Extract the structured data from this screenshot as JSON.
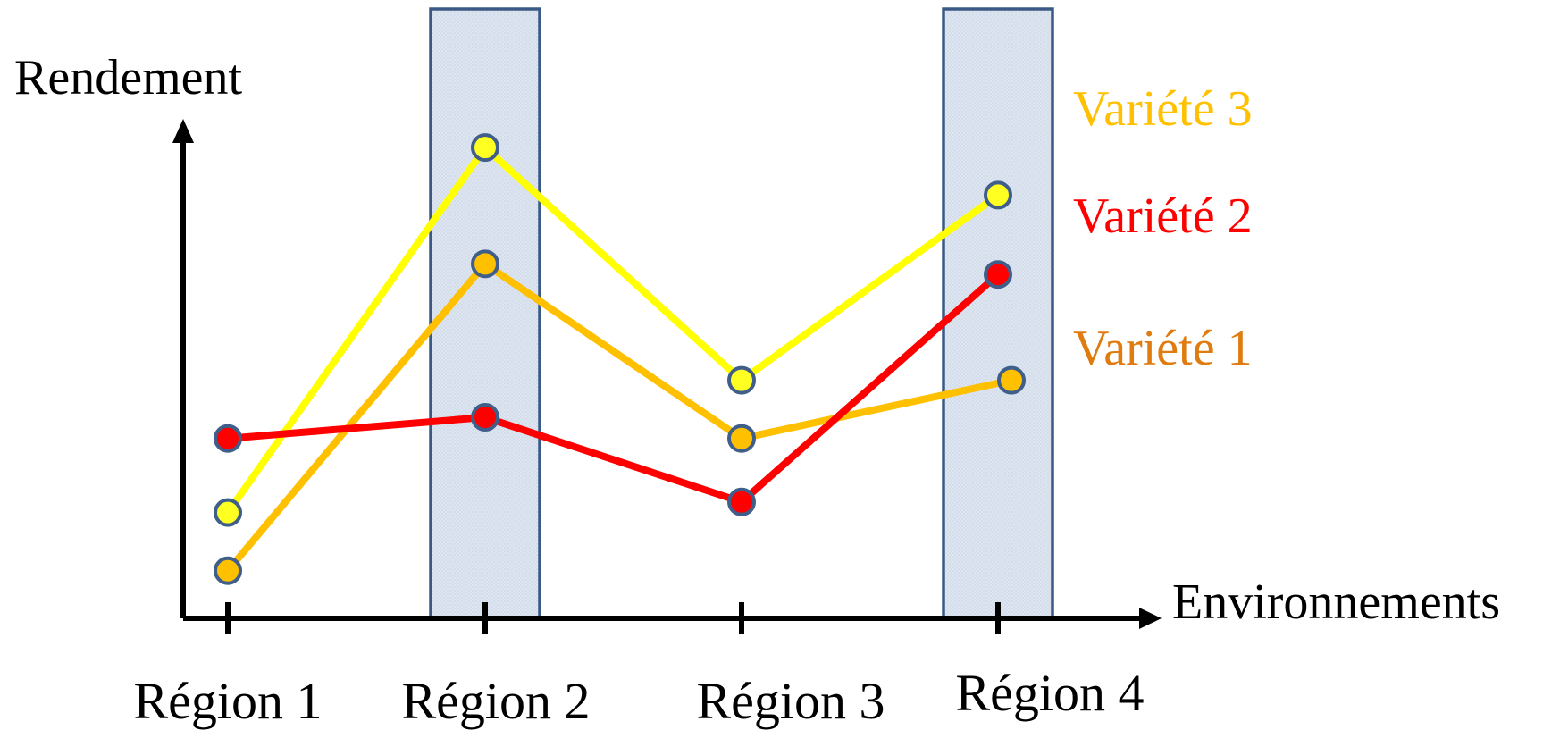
{
  "chart_data": {
    "type": "line",
    "xlabel": "Environnements",
    "ylabel": "Rendement",
    "categories": [
      "Région 1",
      "Région 2",
      "Région 3",
      "Région 4"
    ],
    "highlighted_categories": [
      "Région 2",
      "Région 4"
    ],
    "y_ticks_shown": false,
    "ylim": [
      0,
      10
    ],
    "grid": false,
    "legend_placement": "right",
    "series": [
      {
        "name": "Variété 3",
        "line_color": "#ffff00",
        "marker_color": "#ffff22",
        "label_color": "#ffc000",
        "values": [
          2.0,
          8.9,
          4.5,
          8.0
        ]
      },
      {
        "name": "Variété 2",
        "line_color": "#ff0000",
        "marker_color": "#ff0000",
        "label_color": "#ff0000",
        "values": [
          3.4,
          3.8,
          2.2,
          6.5
        ]
      },
      {
        "name": "Variété 1",
        "line_color": "#ffc000",
        "marker_color": "#ffc000",
        "label_color": "#e07b10",
        "values": [
          0.9,
          6.7,
          3.4,
          4.5
        ]
      }
    ],
    "colors": {
      "axis": "#000000",
      "marker_stroke": "#3f5f8a",
      "highlight_fill": "#dce4f0",
      "highlight_stroke": "#3a5a85"
    }
  }
}
